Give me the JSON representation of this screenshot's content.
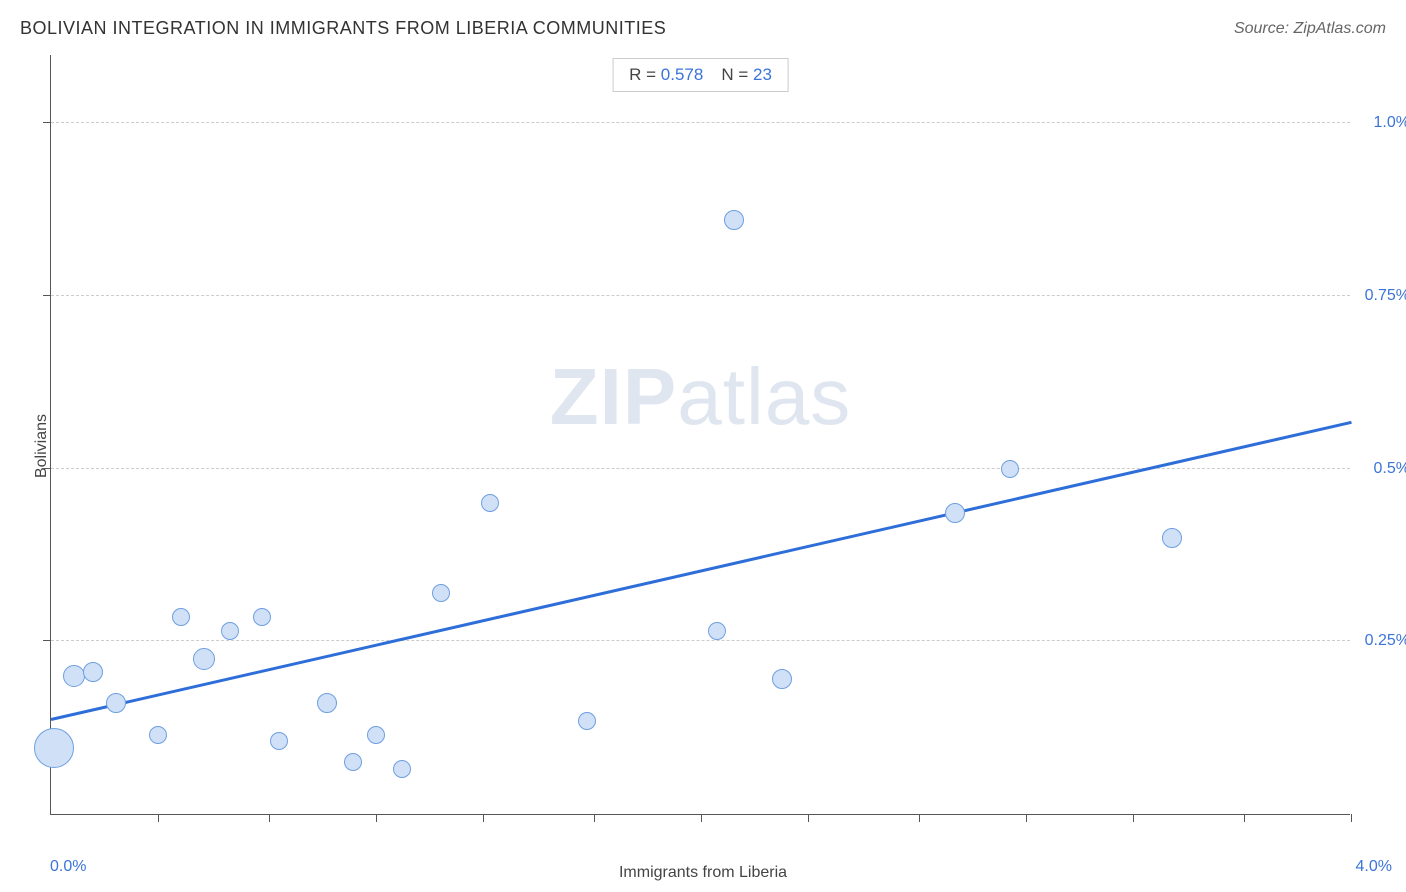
{
  "title": "BOLIVIAN INTEGRATION IN IMMIGRANTS FROM LIBERIA COMMUNITIES",
  "source": "Source: ZipAtlas.com",
  "watermark_a": "ZIP",
  "watermark_b": "atlas",
  "chart": {
    "type": "scatter",
    "xlabel": "Immigrants from Liberia",
    "ylabel": "Bolivians",
    "xlim": [
      0.0,
      4.0
    ],
    "ylim": [
      0.0,
      1.1
    ],
    "x_tick_min_label": "0.0%",
    "x_tick_max_label": "4.0%",
    "y_ticks": [
      {
        "v": 0.25,
        "label": "0.25%"
      },
      {
        "v": 0.5,
        "label": "0.5%"
      },
      {
        "v": 0.75,
        "label": "0.75%"
      },
      {
        "v": 1.0,
        "label": "1.0%"
      }
    ],
    "x_minor_ticks": [
      0.33,
      0.67,
      1.0,
      1.33,
      1.67,
      2.0,
      2.33,
      2.67,
      3.0,
      3.33,
      3.67,
      4.0
    ],
    "background_color": "#ffffff",
    "grid_color": "#cccccc",
    "axis_color": "#555555",
    "tick_label_color": "#3b74d8",
    "point_fill": "#cfe0f7",
    "point_stroke": "#6f9fe0",
    "trend_color": "#2e6ed9",
    "trend_width": 3,
    "stats": {
      "r_label": "R =",
      "r_value": "0.578",
      "n_label": "N =",
      "n_value": "23"
    },
    "points": [
      {
        "x": 0.01,
        "y": 0.095,
        "r": 20
      },
      {
        "x": 0.07,
        "y": 0.2,
        "r": 11
      },
      {
        "x": 0.13,
        "y": 0.205,
        "r": 10
      },
      {
        "x": 0.2,
        "y": 0.16,
        "r": 10
      },
      {
        "x": 0.33,
        "y": 0.115,
        "r": 9
      },
      {
        "x": 0.4,
        "y": 0.285,
        "r": 9
      },
      {
        "x": 0.47,
        "y": 0.225,
        "r": 11
      },
      {
        "x": 0.55,
        "y": 0.265,
        "r": 9
      },
      {
        "x": 0.65,
        "y": 0.285,
        "r": 9
      },
      {
        "x": 0.7,
        "y": 0.105,
        "r": 9
      },
      {
        "x": 0.85,
        "y": 0.16,
        "r": 10
      },
      {
        "x": 0.93,
        "y": 0.075,
        "r": 9
      },
      {
        "x": 1.0,
        "y": 0.115,
        "r": 9
      },
      {
        "x": 1.08,
        "y": 0.065,
        "r": 9
      },
      {
        "x": 1.2,
        "y": 0.32,
        "r": 9
      },
      {
        "x": 1.35,
        "y": 0.45,
        "r": 9
      },
      {
        "x": 1.65,
        "y": 0.135,
        "r": 9
      },
      {
        "x": 2.05,
        "y": 0.265,
        "r": 9
      },
      {
        "x": 2.1,
        "y": 0.86,
        "r": 10
      },
      {
        "x": 2.25,
        "y": 0.195,
        "r": 10
      },
      {
        "x": 2.78,
        "y": 0.435,
        "r": 10
      },
      {
        "x": 2.95,
        "y": 0.5,
        "r": 9
      },
      {
        "x": 3.45,
        "y": 0.4,
        "r": 10
      }
    ],
    "trend_line": {
      "x1": 0.0,
      "y1": 0.135,
      "x2": 4.0,
      "y2": 0.565
    }
  }
}
